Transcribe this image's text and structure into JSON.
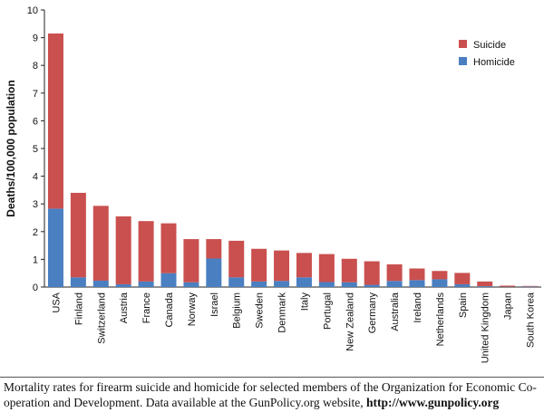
{
  "chart_data": {
    "type": "bar",
    "stacked": true,
    "categories": [
      "USA",
      "Finland",
      "Switzerland",
      "Austria",
      "France",
      "Canada",
      "Norway",
      "Israel",
      "Belgium",
      "Sweden",
      "Denmark",
      "Italy",
      "Portugal",
      "New Zealand",
      "Germany",
      "Australia",
      "Ireland",
      "Netherlands",
      "Spain",
      "United Kingdom",
      "Japan",
      "South Korea"
    ],
    "series": [
      {
        "name": "Homicide",
        "color": "#4a7fc1",
        "values": [
          2.83,
          0.35,
          0.23,
          0.1,
          0.2,
          0.5,
          0.17,
          1.03,
          0.35,
          0.2,
          0.22,
          0.35,
          0.18,
          0.17,
          0.08,
          0.22,
          0.25,
          0.28,
          0.1,
          0.03,
          0.01,
          0.02
        ]
      },
      {
        "name": "Suicide",
        "color": "#c9504f",
        "values": [
          6.32,
          3.05,
          2.7,
          2.45,
          2.18,
          1.8,
          1.56,
          0.7,
          1.32,
          1.18,
          1.1,
          0.88,
          1.01,
          0.85,
          0.85,
          0.6,
          0.42,
          0.3,
          0.41,
          0.17,
          0.04,
          0.02
        ]
      }
    ],
    "ylabel": "Deaths/100,000 population",
    "xlabel": "",
    "ylim": [
      0,
      10
    ],
    "yticks": [
      "0",
      "1",
      "2",
      "3",
      "4",
      "5",
      "6",
      "7",
      "8",
      "9",
      "10"
    ],
    "grid": false,
    "legend_position": "top-right",
    "legend_order": [
      "Suicide",
      "Homicide"
    ]
  },
  "caption": {
    "text": "Mortality rates for firearm suicide and homicide for selected members of the Organization for Economic Co-operation and Development. Data available at the GunPolicy.org website, ",
    "link": "http://www.gunpolicy.org"
  }
}
